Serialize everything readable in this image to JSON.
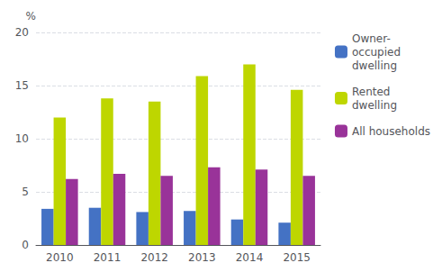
{
  "chart_data": {
    "type": "bar",
    "ylabel": "%",
    "categories": [
      "2010",
      "2011",
      "2012",
      "2013",
      "2014",
      "2015"
    ],
    "series": [
      {
        "name": "Owner-\noccupied\ndwelling",
        "color": "#4472c4",
        "values": [
          3.4,
          3.5,
          3.1,
          3.2,
          2.4,
          2.1
        ]
      },
      {
        "name": "Rented\ndwelling",
        "color": "#bed600",
        "values": [
          12.0,
          13.8,
          13.5,
          15.9,
          17.0,
          14.6
        ]
      },
      {
        "name": "All households",
        "color": "#993399",
        "values": [
          6.2,
          6.7,
          6.5,
          7.3,
          7.1,
          6.5
        ]
      }
    ],
    "ylim": [
      0,
      20
    ],
    "yticks": [
      0,
      5,
      10,
      15,
      20
    ],
    "grid": true,
    "legend": "right"
  }
}
